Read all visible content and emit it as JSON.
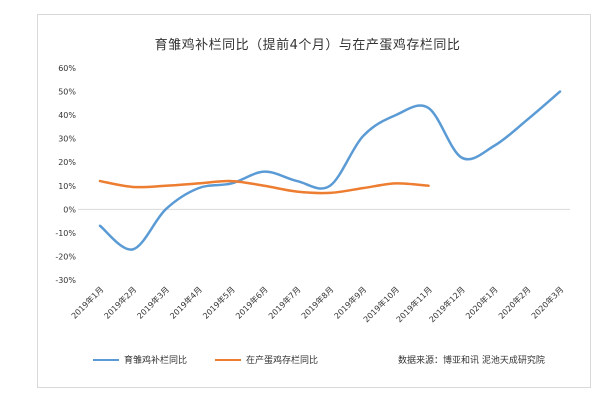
{
  "chart_data": {
    "type": "line",
    "title": "育雏鸡补栏同比（提前4个月）与在产蛋鸡存栏同比",
    "categories": [
      "2019年1月",
      "2019年2月",
      "2019年3月",
      "2019年4月",
      "2019年5月",
      "2019年6月",
      "2019年7月",
      "2019年8月",
      "2019年9月",
      "2019年10月",
      "2019年11月",
      "2019年12月",
      "2020年1月",
      "2020年2月",
      "2020年3月"
    ],
    "series": [
      {
        "name": "育雏鸡补栏同比",
        "color": "#5b9bd5",
        "values": [
          -7,
          -17,
          0,
          9,
          11,
          16,
          12,
          10,
          31,
          40,
          43,
          22,
          27,
          38,
          50
        ]
      },
      {
        "name": "在产蛋鸡存栏同比",
        "color": "#ed7d31",
        "values": [
          12,
          9.5,
          10,
          11,
          12,
          10,
          7.5,
          7,
          9,
          11,
          10,
          null,
          null,
          null,
          null
        ]
      }
    ],
    "ylim": [
      -30,
      60
    ],
    "yticks": [
      -30,
      -20,
      -10,
      0,
      10,
      20,
      30,
      40,
      50,
      60
    ],
    "ytick_labels": [
      "-30%",
      "-20%",
      "-10%",
      "0%",
      "10%",
      "20%",
      "30%",
      "40%",
      "50%",
      "60%"
    ],
    "grid": false,
    "legend_position": "bottom-left"
  },
  "source_text": "数据来源：博亚和讯 泥池天成研究院"
}
